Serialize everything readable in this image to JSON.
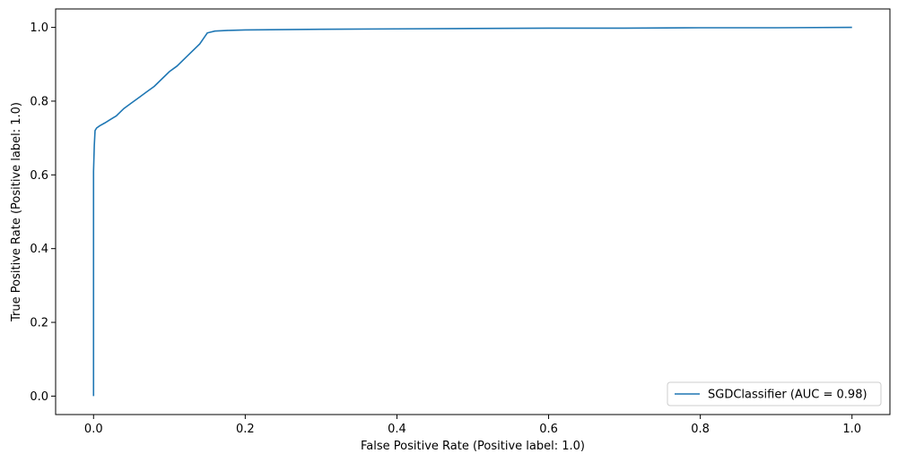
{
  "chart_data": {
    "type": "line",
    "xlabel": "False Positive Rate (Positive label: 1.0)",
    "ylabel": "True Positive Rate (Positive label: 1.0)",
    "xlim": [
      -0.05,
      1.05
    ],
    "ylim": [
      -0.05,
      1.05
    ],
    "xticks": [
      {
        "value": 0.0,
        "label": "0.0"
      },
      {
        "value": 0.2,
        "label": "0.2"
      },
      {
        "value": 0.4,
        "label": "0.4"
      },
      {
        "value": 0.6,
        "label": "0.6"
      },
      {
        "value": 0.8,
        "label": "0.8"
      },
      {
        "value": 1.0,
        "label": "1.0"
      }
    ],
    "yticks": [
      {
        "value": 0.0,
        "label": "0.0"
      },
      {
        "value": 0.2,
        "label": "0.2"
      },
      {
        "value": 0.4,
        "label": "0.4"
      },
      {
        "value": 0.6,
        "label": "0.6"
      },
      {
        "value": 0.8,
        "label": "0.8"
      },
      {
        "value": 1.0,
        "label": "1.0"
      }
    ],
    "grid": false,
    "legend_position": "bottom-right",
    "series": [
      {
        "name": "SGDClassifier (AUC = 0.98)",
        "color": "#1f77b4",
        "points": [
          [
            0.0,
            0.0
          ],
          [
            0.0,
            0.3
          ],
          [
            0.0,
            0.61
          ],
          [
            0.001,
            0.68
          ],
          [
            0.002,
            0.72
          ],
          [
            0.004,
            0.727
          ],
          [
            0.008,
            0.733
          ],
          [
            0.015,
            0.741
          ],
          [
            0.022,
            0.75
          ],
          [
            0.03,
            0.76
          ],
          [
            0.04,
            0.78
          ],
          [
            0.05,
            0.795
          ],
          [
            0.06,
            0.81
          ],
          [
            0.07,
            0.825
          ],
          [
            0.08,
            0.84
          ],
          [
            0.09,
            0.86
          ],
          [
            0.1,
            0.88
          ],
          [
            0.11,
            0.895
          ],
          [
            0.12,
            0.915
          ],
          [
            0.13,
            0.935
          ],
          [
            0.14,
            0.955
          ],
          [
            0.15,
            0.985
          ],
          [
            0.16,
            0.99
          ],
          [
            0.18,
            0.992
          ],
          [
            0.2,
            0.993
          ],
          [
            0.3,
            0.995
          ],
          [
            0.4,
            0.996
          ],
          [
            0.5,
            0.997
          ],
          [
            0.6,
            0.998
          ],
          [
            0.7,
            0.998
          ],
          [
            0.8,
            0.999
          ],
          [
            0.9,
            0.999
          ],
          [
            1.0,
            1.0
          ]
        ]
      }
    ]
  }
}
